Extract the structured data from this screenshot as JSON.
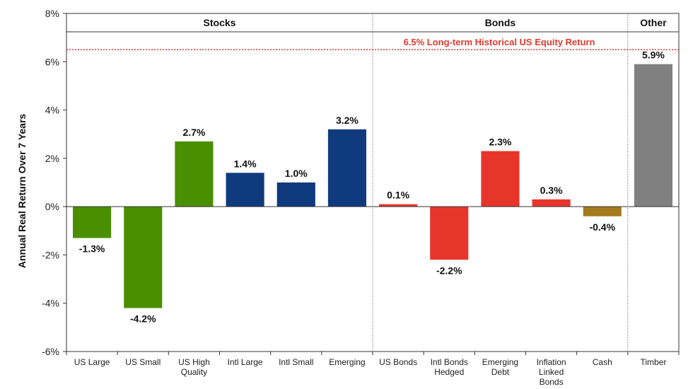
{
  "chart_data": {
    "type": "bar",
    "ylabel": "Annual Real Return Over 7 Years",
    "ylim": [
      -6,
      8
    ],
    "yticks": [
      8,
      6,
      4,
      2,
      0,
      -2,
      -4,
      -6
    ],
    "ytick_labels": [
      "8%",
      "6%",
      "4%",
      "2%",
      "0%",
      "-2%",
      "-4%",
      "-6%"
    ],
    "groups": [
      {
        "label": "Stocks",
        "categories": 6
      },
      {
        "label": "Bonds",
        "categories": 5
      },
      {
        "label": "Other",
        "categories": 1
      }
    ],
    "categories": [
      [
        "US Large"
      ],
      [
        "US Small"
      ],
      [
        "US High",
        "Quality"
      ],
      [
        "Intl Large"
      ],
      [
        "Intl Small"
      ],
      [
        "Emerging"
      ],
      [
        "US Bonds"
      ],
      [
        "Intl Bonds",
        "Hedged"
      ],
      [
        "Emerging",
        "Debt"
      ],
      [
        "Inflation",
        "Linked",
        "Bonds"
      ],
      [
        "Cash"
      ],
      [
        "Timber"
      ]
    ],
    "values": [
      -1.3,
      -4.2,
      2.7,
      1.4,
      1.0,
      3.2,
      0.1,
      -2.2,
      2.3,
      0.3,
      -0.4,
      5.9
    ],
    "value_labels": [
      "-1.3%",
      "-4.2%",
      "2.7%",
      "1.4%",
      "1.0%",
      "3.2%",
      "0.1%",
      "-2.2%",
      "2.3%",
      "0.3%",
      "-0.4%",
      "5.9%"
    ],
    "colors": [
      "#4a8f00",
      "#4a8f00",
      "#4a8f00",
      "#0f3a7d",
      "#0f3a7d",
      "#0f3a7d",
      "#e8352c",
      "#e8352c",
      "#e8352c",
      "#e8352c",
      "#a47b1c",
      "#808080"
    ],
    "reference_line": {
      "value": 6.5,
      "label": "6.5% Long-term Historical US Equity Return",
      "color": "#e03a2e"
    }
  }
}
